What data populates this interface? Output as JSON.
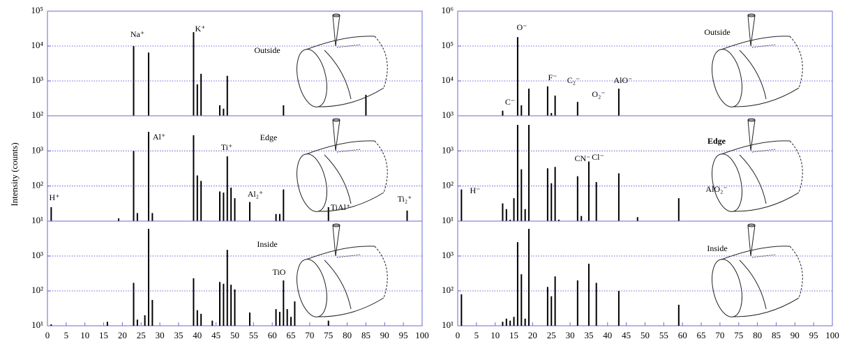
{
  "chart_data": [
    {
      "type": "bar",
      "ylabel": "Intensity (counts)",
      "log_y": true,
      "grid": true,
      "color": "#000000",
      "xlim": [
        0,
        100
      ],
      "ylim": [
        100,
        100000
      ],
      "yticks": [
        {
          "value": 100,
          "label": "10²"
        },
        {
          "value": 1000,
          "label": "10³"
        },
        {
          "value": 10000,
          "label": "10⁴"
        },
        {
          "value": 100000,
          "label": "10⁵"
        }
      ],
      "x": [
        23,
        27,
        39,
        40,
        41,
        46,
        47,
        48,
        63,
        85
      ],
      "values": [
        10000,
        6500,
        25000,
        800,
        1600,
        200,
        160,
        1400,
        200,
        400
      ],
      "annotations": [
        "Na⁺",
        "K⁺",
        "Outside"
      ]
    },
    {
      "type": "bar",
      "log_y": true,
      "grid": true,
      "color": "#000000",
      "xlim": [
        0,
        100
      ],
      "ylim": [
        10,
        10000
      ],
      "yticks": [
        {
          "value": 10,
          "label": "10¹"
        },
        {
          "value": 100,
          "label": "10²"
        },
        {
          "value": 1000,
          "label": "10³"
        }
      ],
      "x": [
        1,
        19,
        23,
        24,
        27,
        28,
        39,
        40,
        41,
        46,
        47,
        48,
        49,
        50,
        54,
        61,
        62,
        63,
        75,
        96
      ],
      "values": [
        25,
        12,
        1000,
        17,
        3500,
        17,
        2800,
        200,
        140,
        70,
        65,
        700,
        90,
        45,
        35,
        16,
        16,
        80,
        25,
        20
      ],
      "annotations": [
        "H⁺",
        "Al⁺",
        "Ti⁺",
        "Al₂⁺",
        "TiAl⁺",
        "Ti₂⁺",
        "Edge"
      ]
    },
    {
      "type": "bar",
      "log_y": true,
      "grid": true,
      "color": "#000000",
      "xlim": [
        0,
        100
      ],
      "ylim": [
        10,
        10000
      ],
      "yticks": [
        {
          "value": 10,
          "label": "10¹"
        },
        {
          "value": 100,
          "label": "10²"
        },
        {
          "value": 1000,
          "label": "10³"
        }
      ],
      "xticks": [
        0,
        5,
        10,
        15,
        20,
        25,
        30,
        35,
        40,
        45,
        50,
        55,
        60,
        65,
        70,
        75,
        80,
        85,
        90,
        95,
        100
      ],
      "x": [
        1,
        16,
        23,
        24,
        26,
        27,
        28,
        39,
        40,
        41,
        44,
        46,
        47,
        48,
        49,
        50,
        54,
        61,
        62,
        63,
        64,
        65,
        66,
        75
      ],
      "values": [
        11,
        13,
        170,
        15,
        20,
        6000,
        55,
        230,
        28,
        22,
        14,
        180,
        160,
        1500,
        150,
        110,
        24,
        30,
        25,
        200,
        30,
        18,
        50,
        14
      ],
      "annotations": [
        "Inside",
        "TiO"
      ]
    },
    {
      "type": "bar",
      "log_y": true,
      "grid": true,
      "color": "#000000",
      "xlim": [
        0,
        100
      ],
      "ylim": [
        1000,
        1000000
      ],
      "yticks": [
        {
          "value": 1000,
          "label": "10³"
        },
        {
          "value": 10000,
          "label": "10⁴"
        },
        {
          "value": 100000,
          "label": "10⁵"
        },
        {
          "value": 1000000,
          "label": "10⁶"
        }
      ],
      "x": [
        12,
        16,
        17,
        19,
        24,
        25,
        26,
        32,
        43
      ],
      "values": [
        1400,
        180000,
        2000,
        6000,
        7000,
        1200,
        3800,
        2500,
        6000
      ],
      "annotations": [
        "O⁻",
        "C⁻",
        "F⁻",
        "C₂⁻",
        "O₂⁻",
        "AlO⁻",
        "Outside"
      ]
    },
    {
      "type": "bar",
      "log_y": true,
      "grid": true,
      "color": "#000000",
      "xlim": [
        0,
        100
      ],
      "ylim": [
        10,
        10000
      ],
      "yticks": [
        {
          "value": 10,
          "label": "10¹"
        },
        {
          "value": 100,
          "label": "10²"
        },
        {
          "value": 1000,
          "label": "10³"
        }
      ],
      "x": [
        1,
        12,
        13,
        14,
        15,
        16,
        17,
        18,
        19,
        24,
        25,
        26,
        27,
        32,
        33,
        35,
        37,
        43,
        48,
        59
      ],
      "values": [
        80,
        32,
        22,
        11,
        45,
        5500,
        300,
        22,
        5500,
        320,
        120,
        350,
        11,
        190,
        14,
        500,
        130,
        230,
        13,
        45
      ],
      "annotations": [
        "H⁻",
        "CN⁻",
        "Cl⁻",
        "AlO₂⁻",
        "Edge"
      ]
    },
    {
      "type": "bar",
      "log_y": true,
      "grid": true,
      "color": "#000000",
      "xlim": [
        0,
        100
      ],
      "ylim": [
        10,
        10000
      ],
      "yticks": [
        {
          "value": 10,
          "label": "10¹"
        },
        {
          "value": 100,
          "label": "10²"
        },
        {
          "value": 1000,
          "label": "10³"
        }
      ],
      "xticks": [
        0,
        5,
        10,
        15,
        20,
        25,
        30,
        35,
        40,
        45,
        50,
        55,
        60,
        65,
        70,
        75,
        80,
        85,
        90,
        95,
        100
      ],
      "x": [
        1,
        12,
        13,
        14,
        15,
        16,
        17,
        18,
        19,
        24,
        25,
        26,
        32,
        35,
        37,
        43,
        59
      ],
      "values": [
        80,
        13,
        16,
        14,
        18,
        2500,
        300,
        16,
        6000,
        130,
        70,
        260,
        200,
        600,
        170,
        100,
        40
      ],
      "annotations": [
        "Inside"
      ]
    }
  ]
}
